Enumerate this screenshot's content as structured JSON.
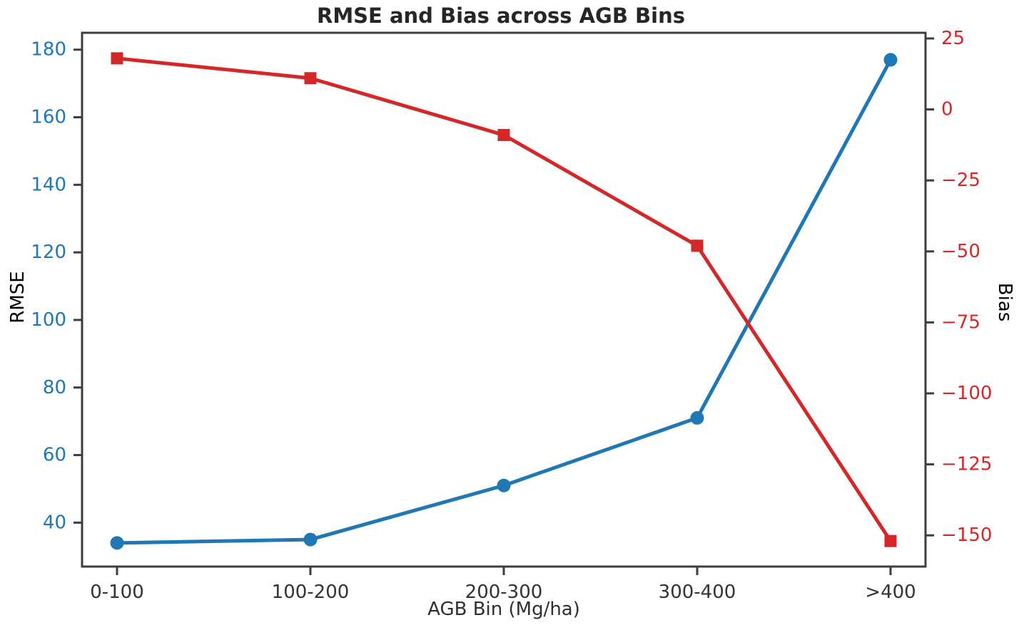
{
  "figure": {
    "title": "RMSE and Bias across AGB Bins",
    "xlabel": "AGB Bin (Mg/ha)",
    "left_axis_label": "RMSE",
    "right_axis_label": "Bias"
  },
  "colors": {
    "rmse": "#1f77b4",
    "bias": "#d62728",
    "axis": "#3d3d3d",
    "x_tick_text": "#333333",
    "title_text": "#262626"
  },
  "chart_data": {
    "type": "line",
    "title": "RMSE and Bias across AGB Bins",
    "xlabel": "AGB Bin (Mg/ha)",
    "left_ylabel": "RMSE",
    "right_ylabel": "Bias",
    "categories": [
      "0-100",
      "100-200",
      "200-300",
      "300-400",
      ">400"
    ],
    "series": [
      {
        "name": "RMSE",
        "axis": "left",
        "color": "#1f77b4",
        "marker": "circle",
        "values": [
          34,
          35,
          51,
          71,
          177
        ]
      },
      {
        "name": "Bias",
        "axis": "right",
        "color": "#d62728",
        "marker": "square",
        "values": [
          18,
          11,
          -9,
          -48,
          -152
        ]
      }
    ],
    "left_ticks": [
      180,
      160,
      140,
      120,
      100,
      80,
      60,
      40
    ],
    "right_ticks": [
      25,
      0,
      -25,
      -50,
      -75,
      -100,
      -125,
      -150
    ],
    "left_ylim": [
      27,
      185
    ],
    "right_ylim": [
      -161,
      27
    ],
    "grid": false,
    "legend": "none"
  }
}
